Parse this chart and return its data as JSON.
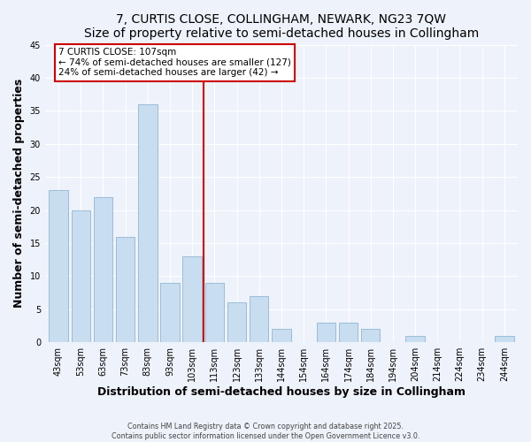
{
  "title": "7, CURTIS CLOSE, COLLINGHAM, NEWARK, NG23 7QW",
  "subtitle": "Size of property relative to semi-detached houses in Collingham",
  "xlabel": "Distribution of semi-detached houses by size in Collingham",
  "ylabel": "Number of semi-detached properties",
  "categories": [
    "43sqm",
    "53sqm",
    "63sqm",
    "73sqm",
    "83sqm",
    "93sqm",
    "103sqm",
    "113sqm",
    "123sqm",
    "133sqm",
    "144sqm",
    "154sqm",
    "164sqm",
    "174sqm",
    "184sqm",
    "194sqm",
    "204sqm",
    "214sqm",
    "224sqm",
    "234sqm",
    "244sqm"
  ],
  "values": [
    23,
    20,
    22,
    16,
    36,
    9,
    13,
    9,
    6,
    7,
    2,
    0,
    3,
    3,
    2,
    0,
    1,
    0,
    0,
    0,
    1
  ],
  "bar_color": "#c8ddf0",
  "bar_edge_color": "#9bbdd8",
  "vline_color": "#cc0000",
  "annotation_title": "7 CURTIS CLOSE: 107sqm",
  "annotation_line1": "← 74% of semi-detached houses are smaller (127)",
  "annotation_line2": "24% of semi-detached houses are larger (42) →",
  "annotation_box_color": "#ffffff",
  "annotation_box_edge": "#cc0000",
  "ylim": [
    0,
    45
  ],
  "yticks": [
    0,
    5,
    10,
    15,
    20,
    25,
    30,
    35,
    40,
    45
  ],
  "footer1": "Contains HM Land Registry data © Crown copyright and database right 2025.",
  "footer2": "Contains public sector information licensed under the Open Government Licence v3.0.",
  "bg_color": "#eef2fa",
  "grid_color": "#ffffff",
  "title_fontsize": 10,
  "tick_fontsize": 7,
  "label_fontsize": 9,
  "footer_fontsize": 5.8,
  "annotation_fontsize": 7.5,
  "vline_x_index": 6
}
